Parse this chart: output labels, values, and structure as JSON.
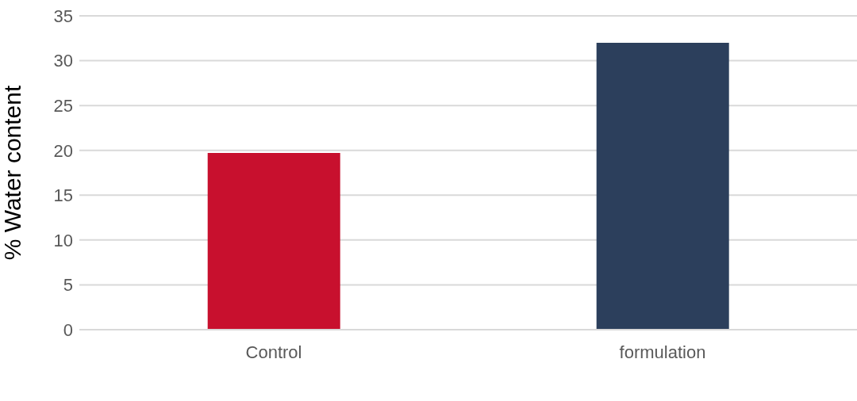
{
  "chart_data": {
    "type": "bar",
    "ylabel": "% Water content",
    "categories": [
      "Control",
      "formulation"
    ],
    "values": [
      19.7,
      32
    ],
    "colors": [
      "#c8102e",
      "#2c3f5c"
    ],
    "ylim": [
      0,
      35
    ],
    "yticks": [
      0,
      5,
      10,
      15,
      20,
      25,
      30,
      35
    ],
    "grid": "y",
    "legend": false
  }
}
